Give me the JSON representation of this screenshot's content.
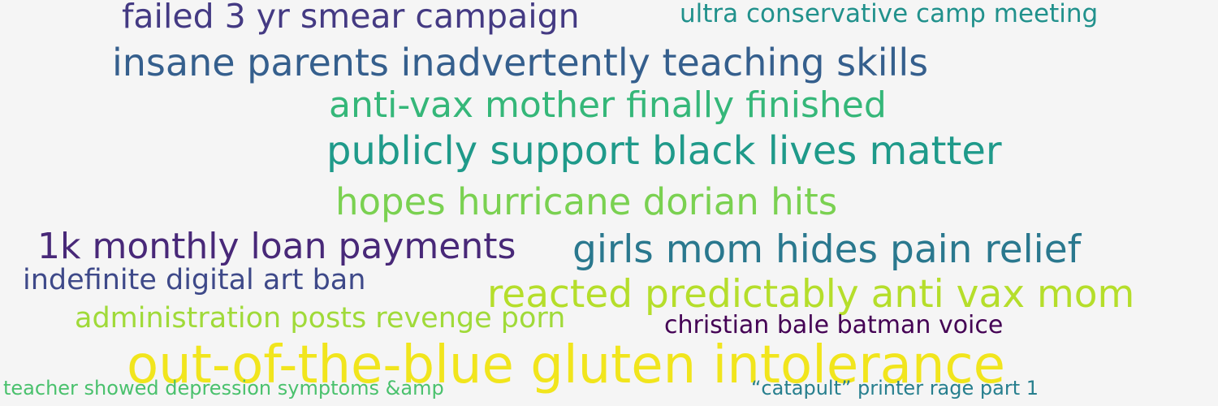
{
  "word_cloud": {
    "background": "#f5f5f5",
    "phrases": [
      {
        "text": "failed 3 yr smear campaign",
        "color": "#443a83"
      },
      {
        "text": "ultra conservative camp meeting",
        "color": "#21918c"
      },
      {
        "text": "insane parents inadvertently teaching skills",
        "color": "#355f8d"
      },
      {
        "text": "anti-vax mother finally finished",
        "color": "#35b779"
      },
      {
        "text": "publicly support black lives matter",
        "color": "#1f9a8a"
      },
      {
        "text": "hopes hurricane dorian hits",
        "color": "#7ad151"
      },
      {
        "text": "1k monthly loan payments",
        "color": "#482878"
      },
      {
        "text": "girls mom hides pain relief",
        "color": "#2a788e"
      },
      {
        "text": "indefinite digital art ban",
        "color": "#3e4989"
      },
      {
        "text": "reacted predictably anti vax mom",
        "color": "#b5de2b"
      },
      {
        "text": "administration posts revenge porn",
        "color": "#a0da39"
      },
      {
        "text": "christian bale batman voice",
        "color": "#440154"
      },
      {
        "text": "out-of-the-blue gluten intolerance",
        "color": "#f1e51d"
      },
      {
        "text": "teacher showed depression symptoms &amp",
        "color": "#4ac16d"
      },
      {
        "text": "“catapult” printer rage part 1",
        "color": "#277f8e"
      }
    ]
  }
}
